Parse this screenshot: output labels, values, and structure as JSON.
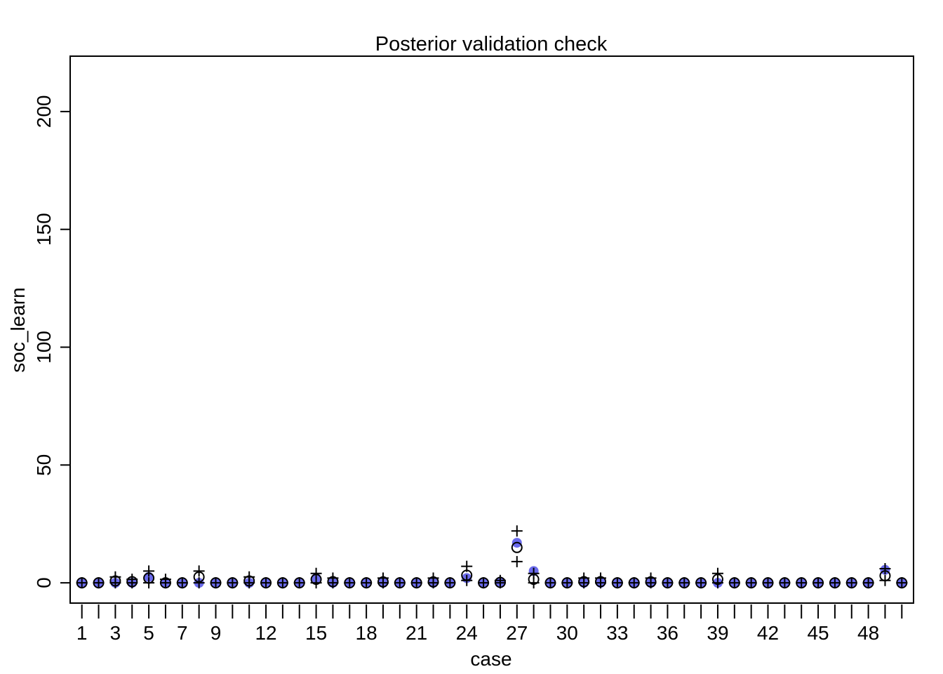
{
  "chart_data": {
    "type": "scatter",
    "title": "Posterior validation check",
    "xlabel": "case",
    "ylabel": "soc_learn",
    "xlim": [
      0.3,
      50.7
    ],
    "ylim": [
      -8.6,
      223.5
    ],
    "x_tick_values": [
      1,
      2,
      3,
      4,
      5,
      6,
      7,
      8,
      9,
      10,
      11,
      12,
      13,
      14,
      15,
      16,
      17,
      18,
      19,
      20,
      21,
      22,
      23,
      24,
      25,
      26,
      27,
      28,
      29,
      30,
      31,
      32,
      33,
      34,
      35,
      36,
      37,
      38,
      39,
      40,
      41,
      42,
      43,
      44,
      45,
      46,
      47,
      48,
      49,
      50
    ],
    "x_tick_labels": [
      "1",
      "3",
      "5",
      "7",
      "9",
      "12",
      "15",
      "18",
      "21",
      "24",
      "27",
      "30",
      "33",
      "36",
      "39",
      "42",
      "45",
      "48"
    ],
    "x_tick_label_positions": [
      1,
      3,
      5,
      7,
      9,
      12,
      15,
      18,
      21,
      24,
      27,
      30,
      33,
      36,
      39,
      42,
      45,
      48
    ],
    "y_ticks": [
      0,
      50,
      100,
      150,
      200
    ],
    "y_tick_labels": [
      "0",
      "50",
      "100",
      "150",
      "200"
    ],
    "grid": false,
    "legend": "none",
    "colors": {
      "observed": "#5b5bea",
      "mean": "#000000",
      "interval": "#000000"
    },
    "observed": [
      0,
      0,
      0,
      0,
      2.5,
      0,
      0,
      0,
      0,
      0,
      0,
      0,
      0,
      0,
      2,
      0,
      0,
      0,
      0,
      0,
      0,
      0,
      0,
      2,
      0,
      0.5,
      17,
      5,
      0,
      0,
      0,
      0,
      0,
      0,
      0,
      0,
      0,
      0,
      0,
      0,
      0,
      0,
      0,
      0,
      0,
      0,
      0,
      0,
      5.5,
      0
    ],
    "mean": [
      0,
      0,
      0.8,
      0.5,
      2,
      0,
      0,
      2.5,
      0,
      0,
      0.8,
      0,
      0,
      0,
      1.5,
      0.5,
      0,
      0,
      0.4,
      0,
      0,
      0.4,
      0,
      3.2,
      0,
      0.2,
      15,
      1.5,
      0,
      0,
      0.5,
      0.5,
      0,
      0,
      0.4,
      0,
      0,
      0,
      1.5,
      0,
      0,
      0,
      0,
      0,
      0,
      0,
      0,
      0,
      3,
      0
    ],
    "lower": [
      0,
      0,
      0,
      0,
      0,
      0,
      0,
      0,
      0,
      0,
      0,
      0,
      0,
      0,
      0,
      0,
      0,
      0,
      0,
      0,
      0,
      0,
      0,
      1,
      0,
      0,
      9,
      0,
      0,
      0,
      0,
      0,
      0,
      0,
      0,
      0,
      0,
      0,
      0,
      0,
      0,
      0,
      0,
      0,
      0,
      0,
      0,
      0,
      1,
      0
    ],
    "upper": [
      0,
      0,
      2.5,
      1.5,
      5,
      1.5,
      0,
      5,
      0,
      0,
      2.5,
      0,
      0,
      0,
      4,
      2,
      0,
      0,
      2,
      0,
      0,
      2,
      0,
      7,
      0,
      1,
      22,
      4,
      0,
      0,
      2,
      2,
      0,
      0,
      2,
      0,
      0,
      0,
      4,
      0,
      0,
      0,
      0,
      0,
      0,
      0,
      0,
      0,
      6,
      0
    ]
  }
}
